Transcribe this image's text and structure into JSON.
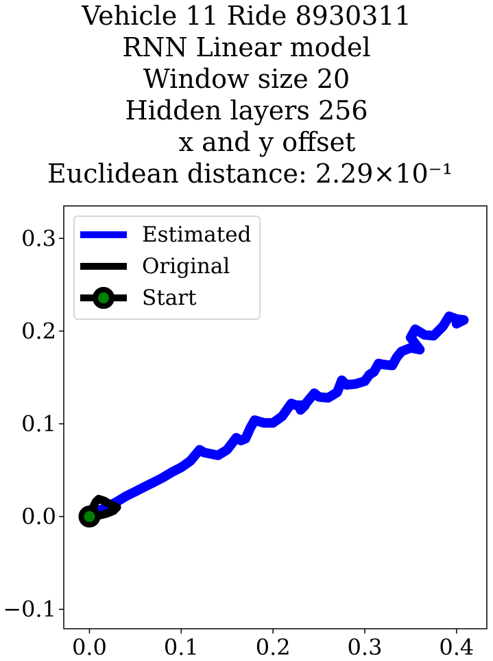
{
  "figure": {
    "title_lines": [
      "Vehicle 11 Ride 8930311",
      "RNN Linear model",
      "Window size 20",
      "Hidden layers 256",
      "x and y offset",
      "Euclidean distance: 2.29×10⁻¹"
    ]
  },
  "chart_data": {
    "type": "line",
    "title": "Vehicle 11 Ride 8930311 / RNN Linear model / Window size 20 / Hidden layers 256 / x and y offset / Euclidean distance: 2.29×10⁻¹",
    "xlabel": "",
    "ylabel": "",
    "xlim": [
      -0.028,
      0.433
    ],
    "ylim": [
      -0.121,
      0.335
    ],
    "xticks": [
      0.0,
      0.1,
      0.2,
      0.3,
      0.4
    ],
    "xtick_labels": [
      "0.0",
      "0.1",
      "0.2",
      "0.3",
      "0.4"
    ],
    "yticks": [
      -0.1,
      0.0,
      0.1,
      0.2,
      0.3
    ],
    "ytick_labels": [
      "−0.1",
      "0.0",
      "0.1",
      "0.2",
      "0.3"
    ],
    "grid": false,
    "legend_position": "upper-left",
    "series": [
      {
        "name": "Estimated",
        "color": "#0000ff",
        "points": [
          [
            0.0,
            0.0
          ],
          [
            0.01,
            0.006
          ],
          [
            0.02,
            0.011
          ],
          [
            0.03,
            0.016
          ],
          [
            0.04,
            0.022
          ],
          [
            0.05,
            0.027
          ],
          [
            0.06,
            0.032
          ],
          [
            0.07,
            0.037
          ],
          [
            0.08,
            0.042
          ],
          [
            0.09,
            0.048
          ],
          [
            0.1,
            0.053
          ],
          [
            0.11,
            0.06
          ],
          [
            0.12,
            0.072
          ],
          [
            0.125,
            0.069
          ],
          [
            0.14,
            0.066
          ],
          [
            0.15,
            0.072
          ],
          [
            0.16,
            0.085
          ],
          [
            0.165,
            0.082
          ],
          [
            0.17,
            0.084
          ],
          [
            0.175,
            0.095
          ],
          [
            0.18,
            0.104
          ],
          [
            0.19,
            0.101
          ],
          [
            0.2,
            0.101
          ],
          [
            0.21,
            0.108
          ],
          [
            0.22,
            0.122
          ],
          [
            0.225,
            0.12
          ],
          [
            0.235,
            0.12
          ],
          [
            0.23,
            0.115
          ],
          [
            0.24,
            0.127
          ],
          [
            0.245,
            0.133
          ],
          [
            0.25,
            0.129
          ],
          [
            0.26,
            0.128
          ],
          [
            0.27,
            0.134
          ],
          [
            0.275,
            0.147
          ],
          [
            0.28,
            0.142
          ],
          [
            0.29,
            0.143
          ],
          [
            0.3,
            0.146
          ],
          [
            0.305,
            0.153
          ],
          [
            0.31,
            0.156
          ],
          [
            0.315,
            0.165
          ],
          [
            0.32,
            0.164
          ],
          [
            0.33,
            0.163
          ],
          [
            0.335,
            0.172
          ],
          [
            0.34,
            0.178
          ],
          [
            0.35,
            0.182
          ],
          [
            0.36,
            0.18
          ],
          [
            0.35,
            0.193
          ],
          [
            0.355,
            0.202
          ],
          [
            0.365,
            0.196
          ],
          [
            0.375,
            0.195
          ],
          [
            0.385,
            0.205
          ],
          [
            0.392,
            0.216
          ],
          [
            0.4,
            0.213
          ],
          [
            0.408,
            0.212
          ],
          [
            0.4,
            0.208
          ]
        ]
      },
      {
        "name": "Original",
        "color": "#000000",
        "points": [
          [
            0.0,
            0.0
          ],
          [
            0.003,
            0.008
          ],
          [
            0.007,
            0.016
          ],
          [
            0.01,
            0.019
          ],
          [
            0.016,
            0.017
          ],
          [
            0.023,
            0.013
          ],
          [
            0.03,
            0.01
          ],
          [
            0.026,
            0.006
          ],
          [
            0.018,
            0.003
          ],
          [
            0.01,
            0.001
          ],
          [
            0.004,
            -0.002
          ],
          [
            0.0,
            -0.002
          ],
          [
            0.0,
            0.0
          ]
        ]
      },
      {
        "name": "Start",
        "color": "#000000",
        "marker_fill": "#008000",
        "points": [
          [
            0.0,
            0.0
          ]
        ]
      }
    ]
  }
}
